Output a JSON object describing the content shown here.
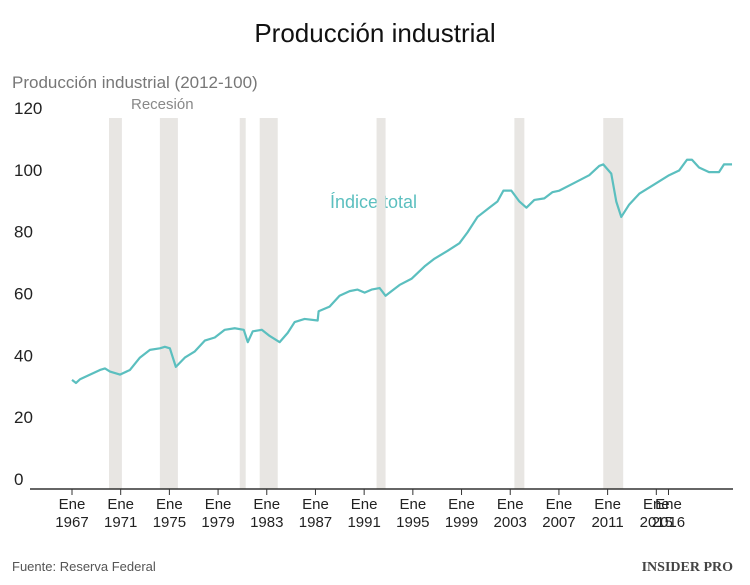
{
  "chart_data": {
    "type": "line",
    "title": "Producción industrial",
    "y_axis_title": "Producción industrial (2012-100)",
    "recession_label": "Recesión",
    "annotation": "Índice total",
    "source": "Fuente: Reserva Federal",
    "logo": "INSIDER PRO",
    "xlim": [
      1963.55,
      2021.3
    ],
    "ylim": [
      0,
      120
    ],
    "yticks": [
      0,
      20,
      40,
      60,
      80,
      100,
      120
    ],
    "grid": false,
    "xticks": [
      {
        "value": 1967,
        "label": "Ene 1967"
      },
      {
        "value": 1971,
        "label": "Ene 1971"
      },
      {
        "value": 1975,
        "label": "Ene 1975"
      },
      {
        "value": 1979,
        "label": "Ene 1979"
      },
      {
        "value": 1983,
        "label": "Ene 1983"
      },
      {
        "value": 1987,
        "label": "Ene 1987"
      },
      {
        "value": 1991,
        "label": "Ene 1991"
      },
      {
        "value": 1995,
        "label": "Ene 1995"
      },
      {
        "value": 1999,
        "label": "Ene 1999"
      },
      {
        "value": 2003,
        "label": "Ene 2003"
      },
      {
        "value": 2007,
        "label": "Ene 2007"
      },
      {
        "value": 2011,
        "label": "Ene 2011"
      },
      {
        "value": 2015,
        "label": "Ene 2015"
      },
      {
        "value": 2016,
        "label": "Ene 2016"
      }
    ],
    "recessions": [
      [
        1970.04,
        1971.1
      ],
      [
        1974.22,
        1975.7
      ],
      [
        1980.78,
        1981.27
      ],
      [
        1982.42,
        1983.9
      ],
      [
        1992.02,
        1992.76
      ],
      [
        2003.34,
        2004.16
      ],
      [
        2010.64,
        2012.28
      ]
    ],
    "recession_color": "#e8e6e3",
    "series": [
      {
        "name": "Índice total",
        "color": "#5bbfbf",
        "x": [
          1967.0,
          1967.33,
          1967.66,
          1968.48,
          1969.3,
          1969.71,
          1970.12,
          1970.53,
          1970.94,
          1971.76,
          1972.58,
          1973.4,
          1974.22,
          1974.63,
          1975.04,
          1975.53,
          1976.27,
          1977.09,
          1977.91,
          1978.73,
          1979.55,
          1980.37,
          1981.11,
          1981.44,
          1981.85,
          1982.59,
          1983.24,
          1984.06,
          1984.72,
          1985.29,
          1986.11,
          1987.18,
          1987.26,
          1988.16,
          1988.98,
          1989.81,
          1990.46,
          1991.04,
          1991.61,
          1992.27,
          1992.76,
          1993.25,
          1993.91,
          1994.89,
          1995.96,
          1996.78,
          1997.84,
          1998.83,
          1999.49,
          2000.31,
          2001.29,
          2001.95,
          2002.44,
          2003.09,
          2003.75,
          2004.33,
          2004.98,
          2005.8,
          2006.46,
          2007.03,
          2008.26,
          2009.49,
          2010.31,
          2010.64,
          2011.3,
          2011.71,
          2012.12,
          2012.77,
          2013.6,
          2014.83,
          2016.05,
          2016.87,
          2017.52,
          2017.93,
          2018.51,
          2019.33,
          2020.15,
          2020.56,
          2021.22
        ],
        "values": [
          35.3,
          34.3,
          35.5,
          37,
          38.5,
          39,
          38,
          37.5,
          37,
          38.5,
          42.5,
          45,
          45.5,
          46,
          45.5,
          39.5,
          42.5,
          44.5,
          48,
          49,
          51.5,
          52,
          51.5,
          47.5,
          51,
          51.5,
          49.5,
          47.5,
          50.5,
          54,
          55,
          54.5,
          57.5,
          59,
          62.5,
          64,
          64.5,
          63.5,
          64.5,
          65,
          62.5,
          64,
          66,
          68,
          72,
          74.5,
          77,
          79.5,
          83,
          88,
          91,
          93,
          96.5,
          96.5,
          93,
          91,
          93.5,
          94,
          96,
          96.5,
          99,
          101.5,
          104.5,
          105,
          102,
          93,
          88,
          92,
          95.5,
          98.5,
          101.5,
          103,
          106.5,
          106.5,
          104,
          102.5,
          102.5,
          105,
          105
        ]
      }
    ]
  }
}
